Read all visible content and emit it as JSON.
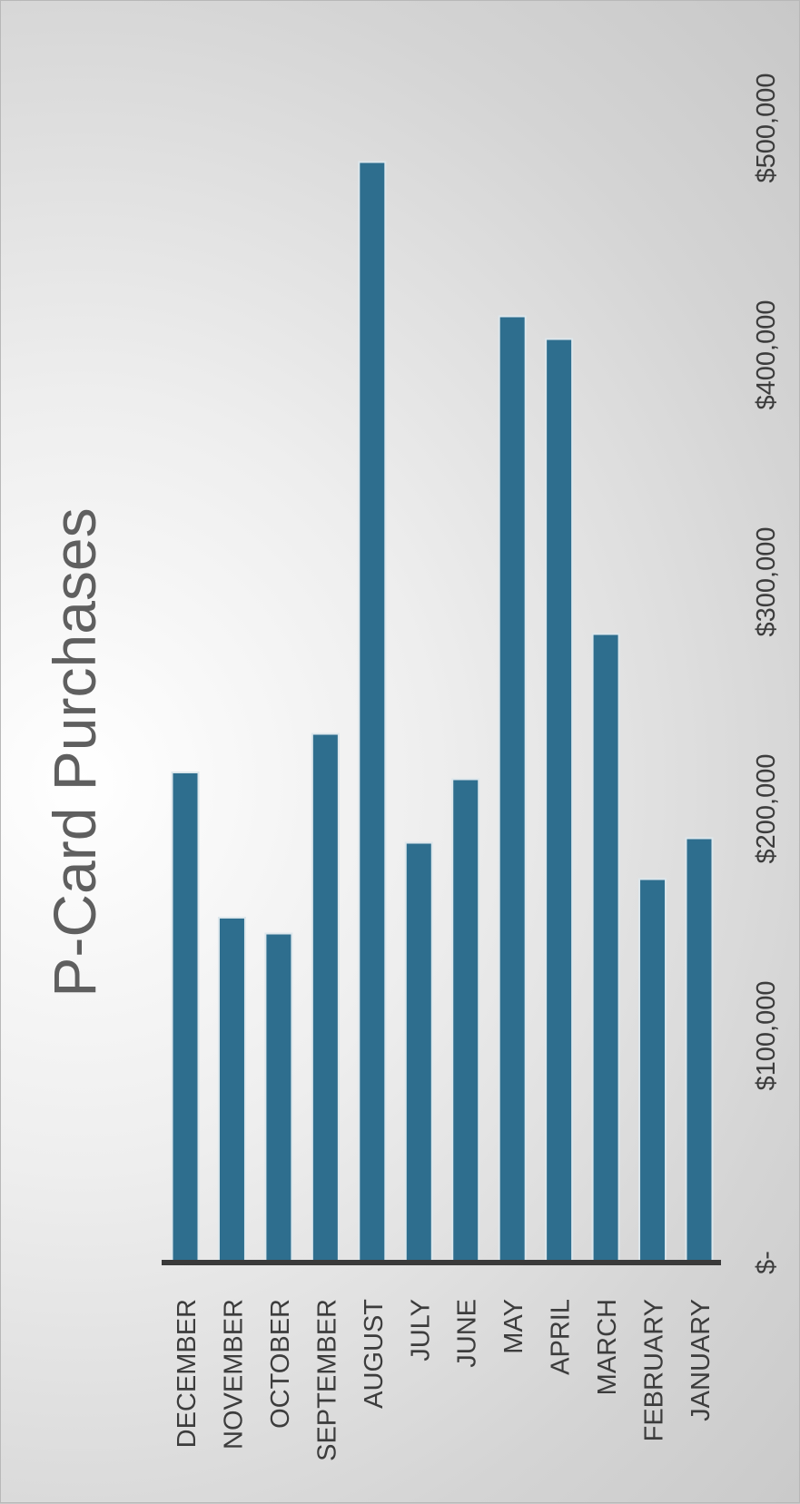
{
  "chart_data": {
    "type": "bar",
    "orientation": "horizontal-rotated",
    "title": "P-Card Purchases",
    "categories": [
      "DECEMBER",
      "NOVEMBER",
      "OCTOBER",
      "SEPTEMBER",
      "AUGUST",
      "JULY",
      "JUNE",
      "MAY",
      "APRIL",
      "MARCH",
      "FEBRUARY",
      "JANUARY"
    ],
    "values": [
      216000,
      152000,
      145000,
      233000,
      485000,
      185000,
      213000,
      417000,
      407000,
      277000,
      169000,
      187000
    ],
    "value_ticks": [
      "$-",
      "$100,000",
      "$200,000",
      "$300,000",
      "$400,000",
      "$500,000"
    ],
    "ylim": [
      0,
      500000
    ],
    "grid": true,
    "colors": {
      "bar": "#2e6e8e",
      "bar_stroke": "#dde7ec",
      "grid": "#8a8a8a",
      "axis": "#3a3a3a",
      "text": "#3c3c3c",
      "title": "#5f5f5f"
    }
  }
}
